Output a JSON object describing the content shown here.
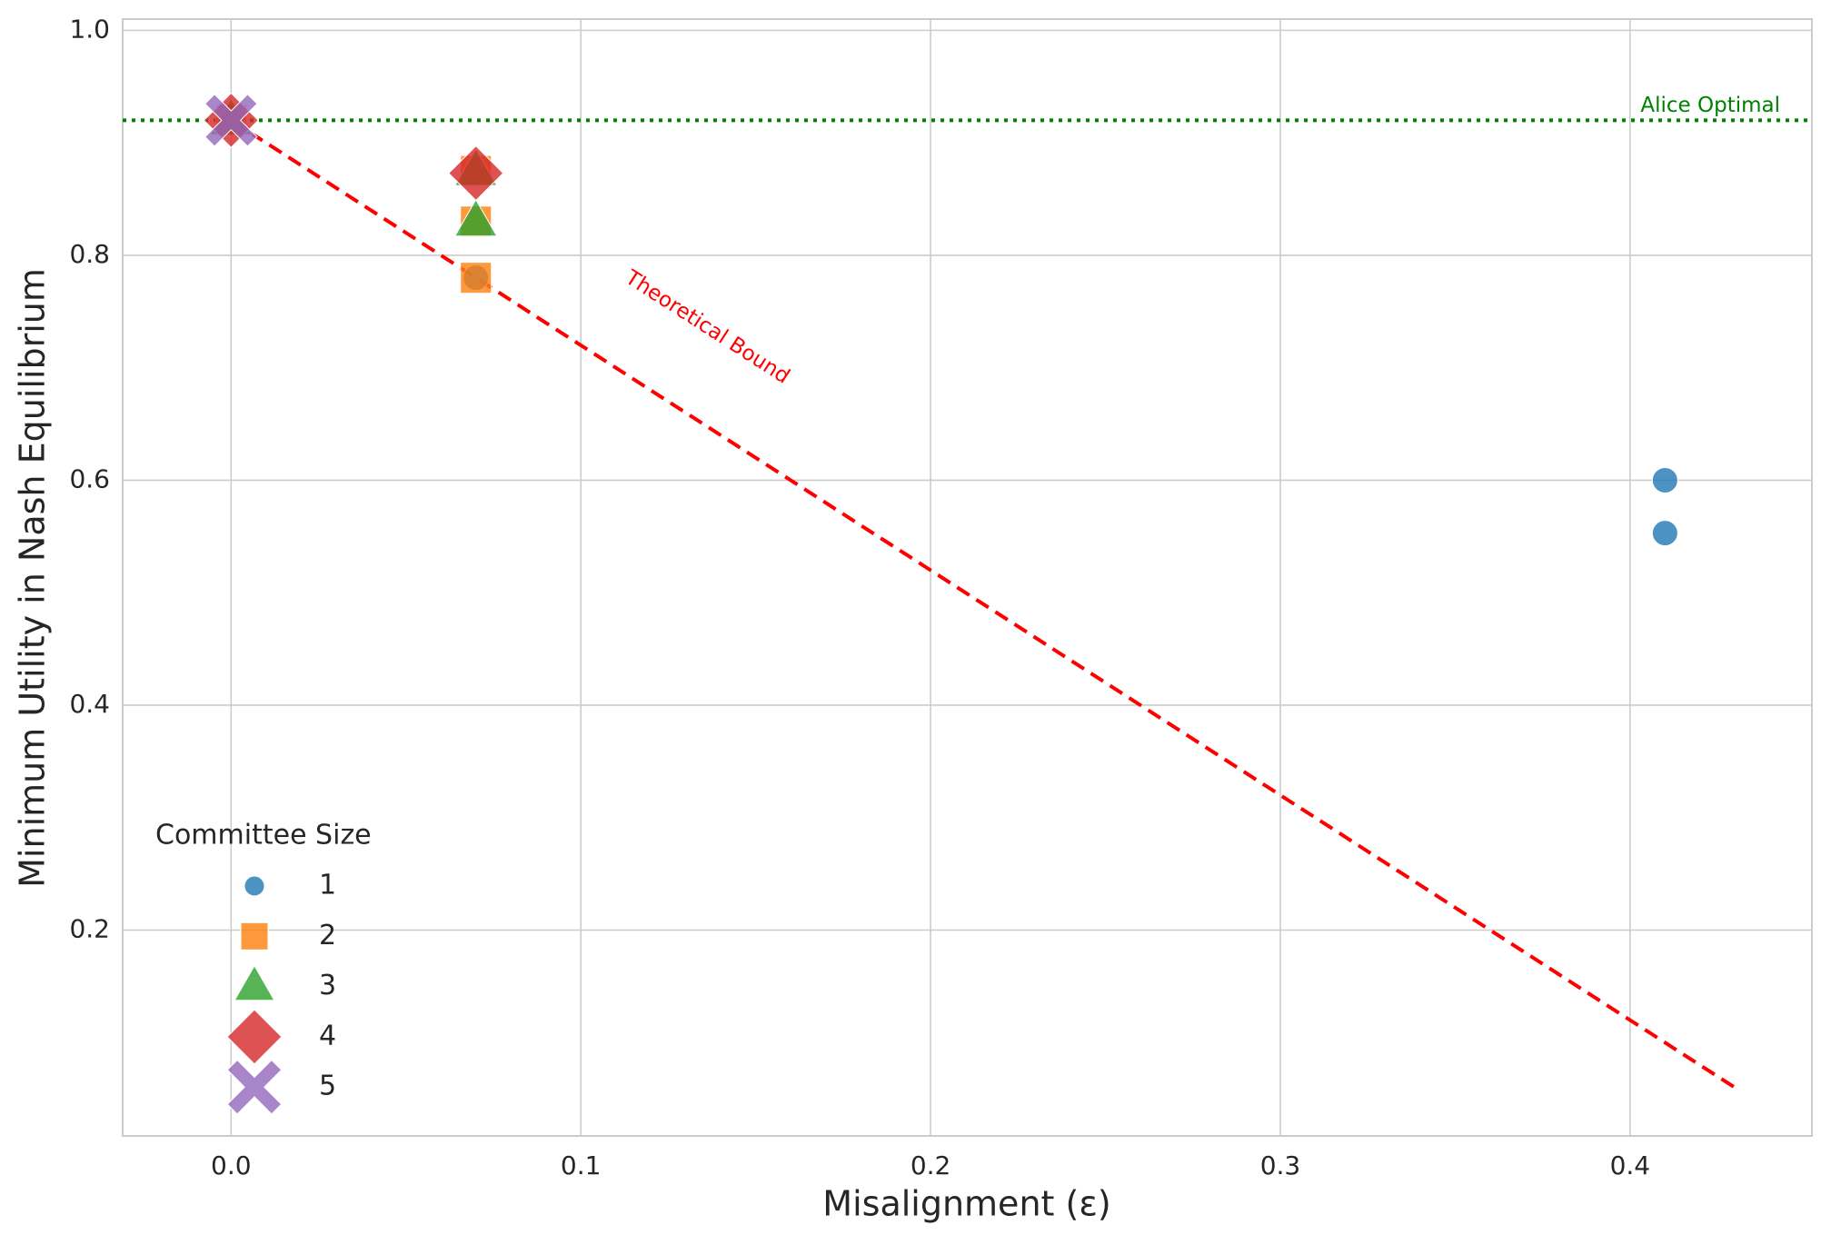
{
  "chart_data": {
    "type": "scatter",
    "xlabel": "Misalignment (ε)",
    "ylabel": "Minimum Utility in Nash Equilibrium",
    "xlim": [
      -0.031,
      0.452
    ],
    "ylim": [
      0.017,
      1.01
    ],
    "xticks": [
      {
        "value": 0,
        "label": "0.0"
      },
      0.1,
      0.2,
      0.3,
      0.4
    ],
    "yticks": [
      0.2,
      0.4,
      0.6,
      0.8,
      {
        "value": 1,
        "label": "1.0"
      }
    ],
    "grid": true,
    "legend_title": "Committee Size",
    "legend_position": "lower left",
    "series": [
      {
        "name": "1",
        "color": "#1f77b4",
        "marker": "circle",
        "x": [
          0,
          0.07,
          0.41,
          0.41
        ],
        "values": [
          0.92,
          0.78,
          0.6,
          0.553
        ]
      },
      {
        "name": "2",
        "color": "#ff7f0e",
        "marker": "square",
        "x": [
          0,
          0.07,
          0.07,
          0.07
        ],
        "values": [
          0.92,
          0.78,
          0.83,
          0.875
        ]
      },
      {
        "name": "3",
        "color": "#2ca02c",
        "marker": "triangle",
        "x": [
          0,
          0.07,
          0.07
        ],
        "values": [
          0.92,
          0.83,
          0.875
        ]
      },
      {
        "name": "4",
        "color": "#d62728",
        "marker": "diamond",
        "x": [
          0,
          0.07
        ],
        "values": [
          0.92,
          0.873
        ]
      },
      {
        "name": "5",
        "color": "#9467bd",
        "marker": "x",
        "x": [
          0
        ],
        "values": [
          0.92
        ]
      }
    ],
    "bound_line": {
      "label": "Theoretical Bound",
      "color": "#ff0000",
      "style": "dashed",
      "x": [
        0,
        0.43
      ],
      "values": [
        0.92,
        0.06
      ]
    },
    "optimal_line": {
      "label": "Alice Optimal",
      "color": "#008000",
      "style": "dotted",
      "value": 0.92
    }
  }
}
